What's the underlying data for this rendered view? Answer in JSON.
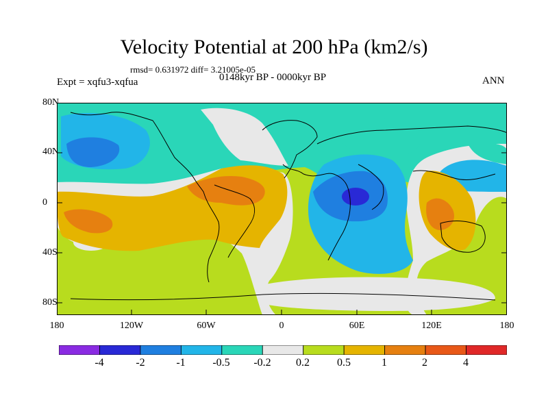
{
  "title": "Velocity Potential at 200 hPa (km2/s)",
  "stats": "rmsd= 0.631972 diff= 3.21005e-05",
  "experiment": "Expt = xqfu3-xqfua",
  "period": "0148kyr BP - 0000kyr BP",
  "season": "ANN",
  "lat_labels": [
    "80N",
    "40N",
    "0",
    "40S",
    "80S"
  ],
  "lon_labels": [
    "180",
    "120W",
    "60W",
    "0",
    "60E",
    "120E",
    "180"
  ],
  "colorbar": {
    "labels": [
      "-4",
      "-2",
      "-1",
      "-0.5",
      "-0.2",
      "0.2",
      "0.5",
      "1",
      "2",
      "4"
    ],
    "colors": [
      "#8a2be2",
      "#2929d6",
      "#1f7fe0",
      "#22b5e8",
      "#2ad6b8",
      "#e8e8e8",
      "#b8dc1e",
      "#e5b400",
      "#e68010",
      "#e85818",
      "#e02828"
    ]
  },
  "map_colors": {
    "background_green": "#b8dc1e",
    "teal": "#2ad6b8",
    "light_blue": "#22b5e8",
    "blue": "#1f7fe0",
    "dark_blue": "#2929d6",
    "neutral": "#e8e8e8",
    "orange_yellow": "#e5b400",
    "orange": "#e68010",
    "coastline": "#000000"
  }
}
